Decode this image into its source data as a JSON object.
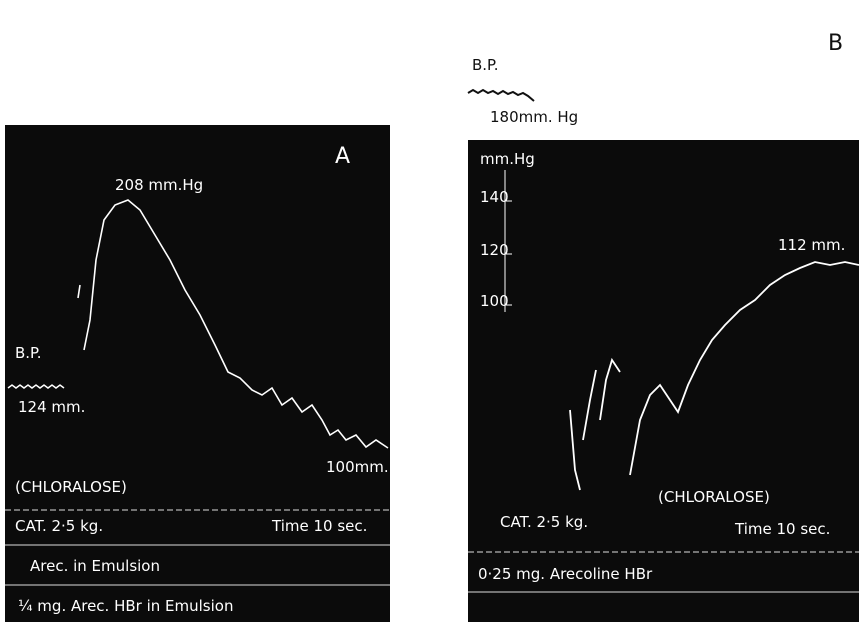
{
  "panel_a": {
    "label": "A",
    "peak": "208 mm.Hg",
    "bp": "B.P.",
    "start": "124 mm.",
    "end": "100mm.",
    "anaesthetic": "(CHLORALOSE)",
    "animal": "CAT. 2·5 kg.",
    "time": "Time 10 sec.",
    "signal_1": "Arec. in Emulsion",
    "signal_2": "¼ mg. Arec. HBr in Emulsion"
  },
  "panel_b": {
    "label": "B",
    "bp": "B.P.",
    "start": "180mm. Hg",
    "scale_unit": "mm.Hg",
    "scale": [
      "140",
      "120",
      "100"
    ],
    "end": "112 mm.",
    "anaesthetic": "(CHLORALOSE)",
    "animal": "CAT. 2·5 kg.",
    "time": "Time 10 sec.",
    "signal": "0·25 mg. Arecoline HBr"
  }
}
